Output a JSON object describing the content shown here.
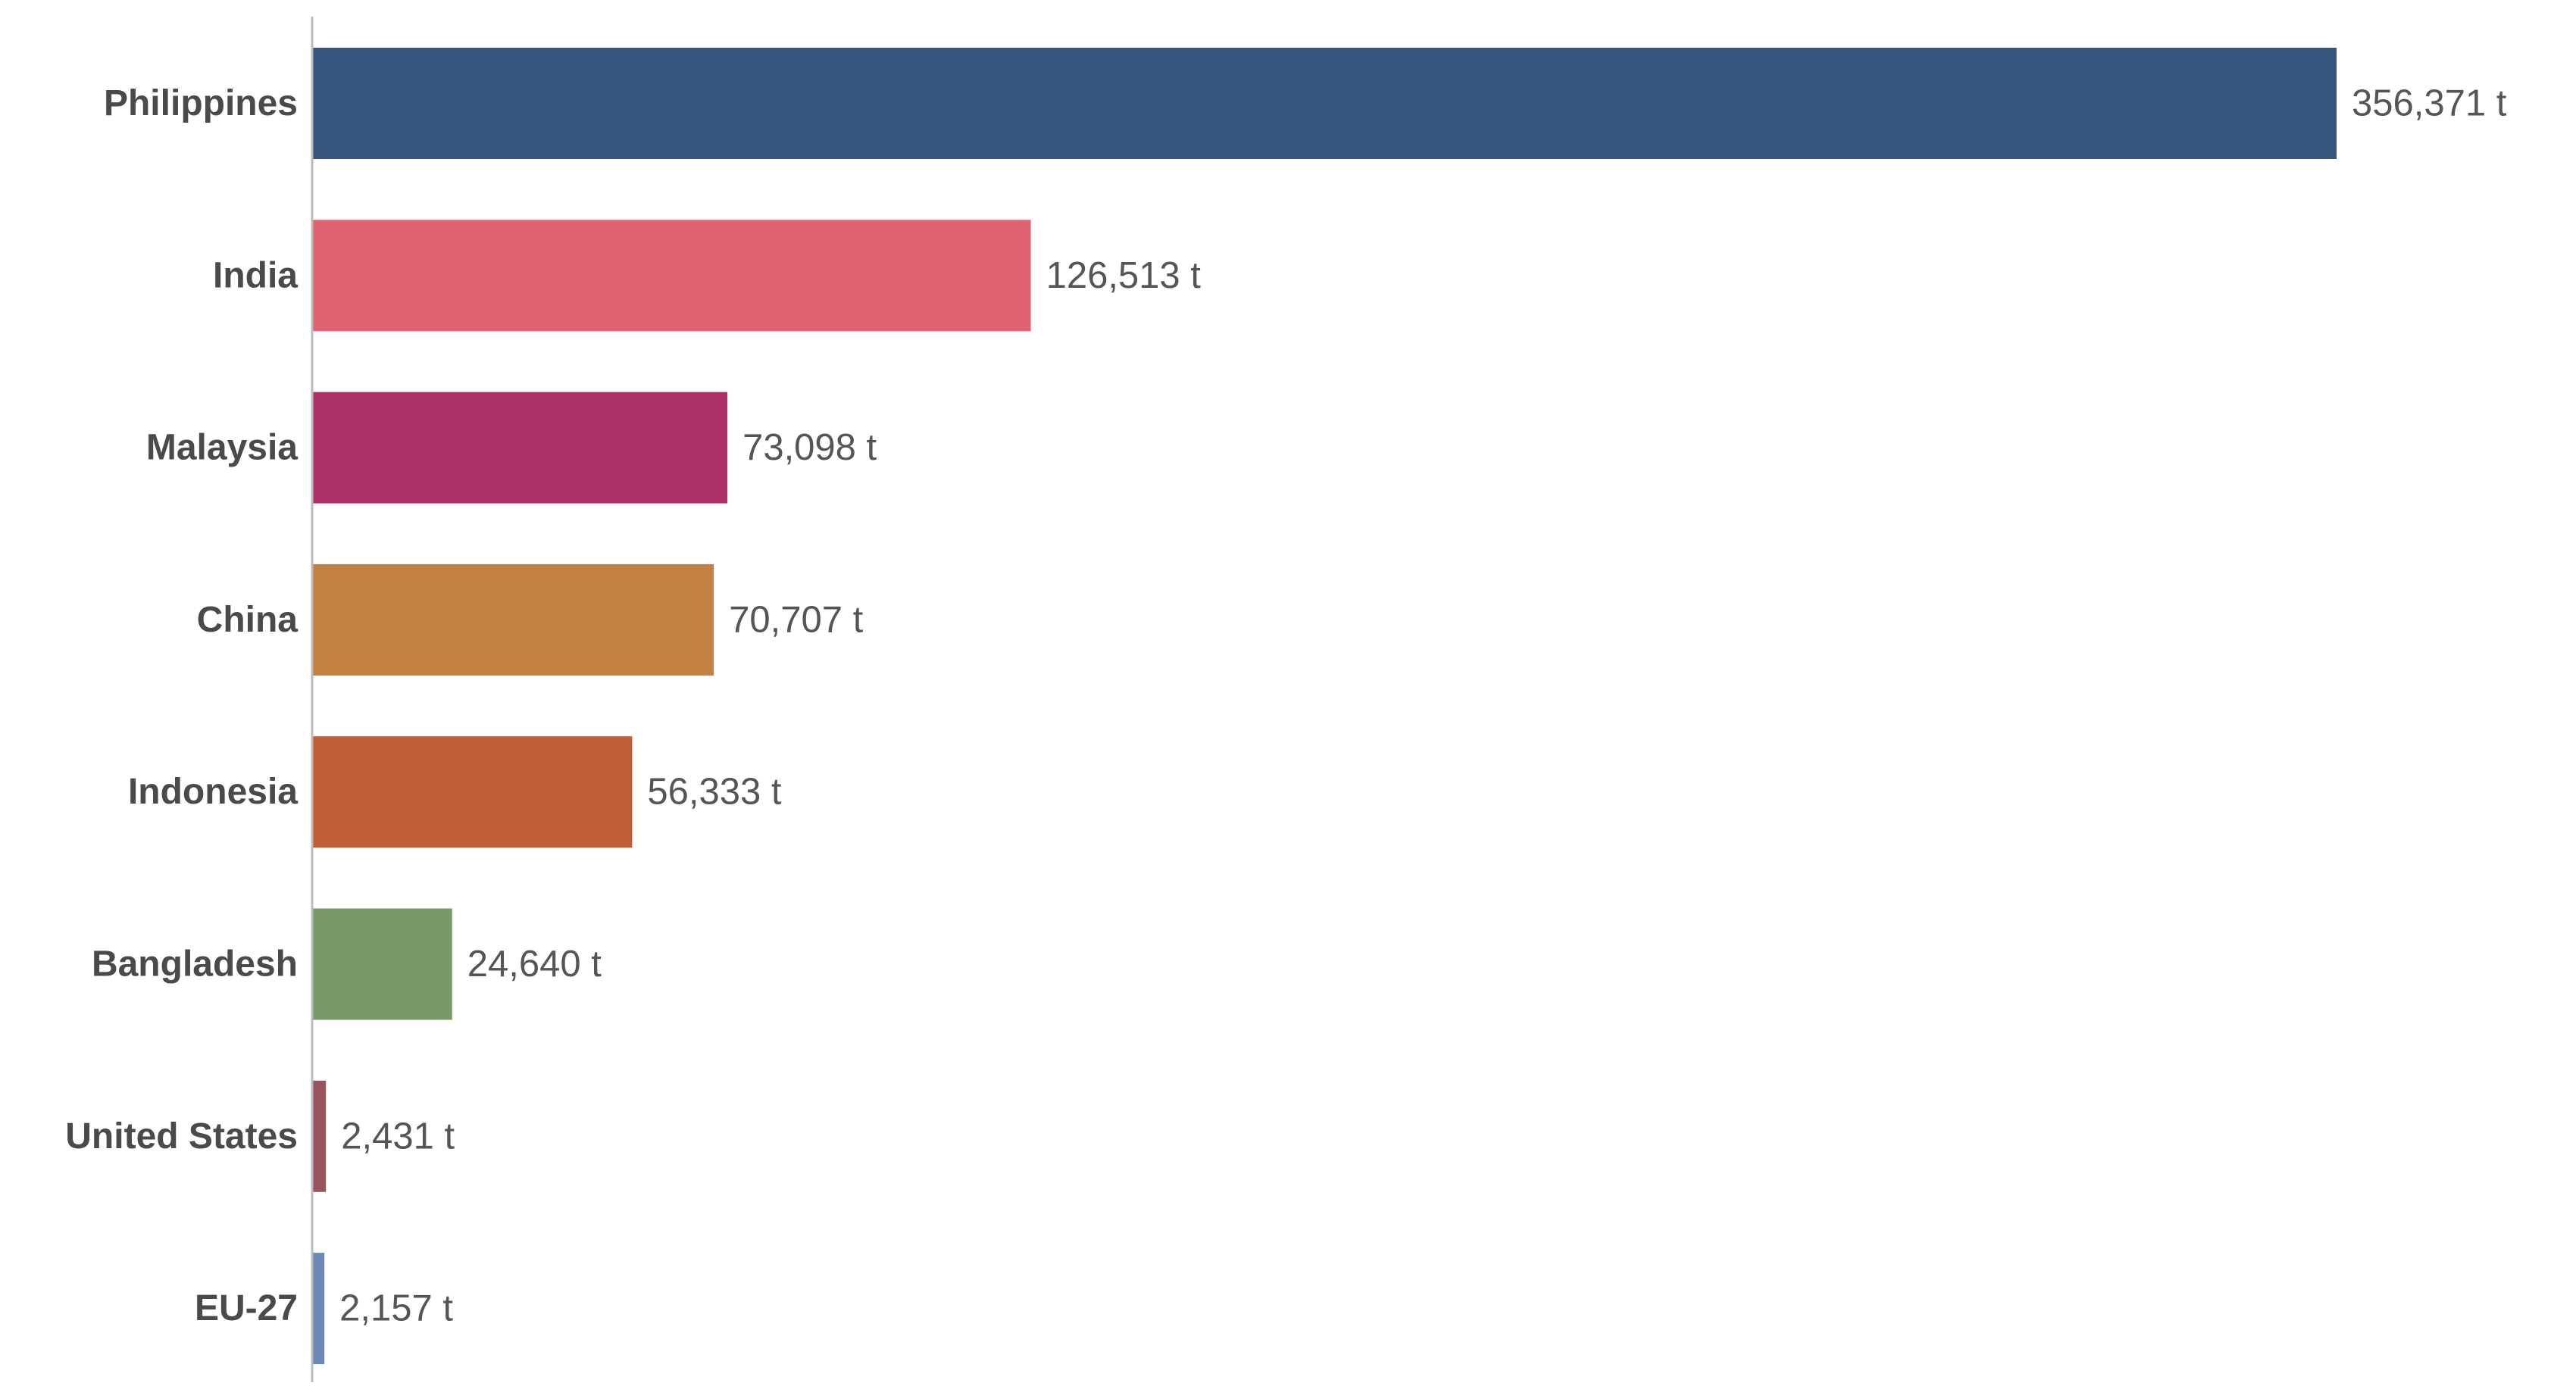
{
  "chart_data": {
    "type": "bar",
    "orientation": "horizontal",
    "categories": [
      "Philippines",
      "India",
      "Malaysia",
      "China",
      "Indonesia",
      "Bangladesh",
      "United States",
      "EU-27"
    ],
    "values": [
      356371,
      126513,
      73098,
      70707,
      56333,
      24640,
      2431,
      2157
    ],
    "value_labels": [
      "356,371 t",
      "126,513 t",
      "73,098 t",
      "70,707 t",
      "56,333 t",
      "24,640 t",
      "2,431 t",
      "2,157 t"
    ],
    "unit": "t",
    "colors": [
      "#34567d",
      "#e06372",
      "#ad306a",
      "#c28141",
      "#c15d36",
      "#789a69",
      "#9a525c",
      "#6c89b5"
    ],
    "axis_line_color": "#bbbbbb",
    "xlim": [
      0,
      356371
    ],
    "grid": false,
    "legend": "none"
  }
}
